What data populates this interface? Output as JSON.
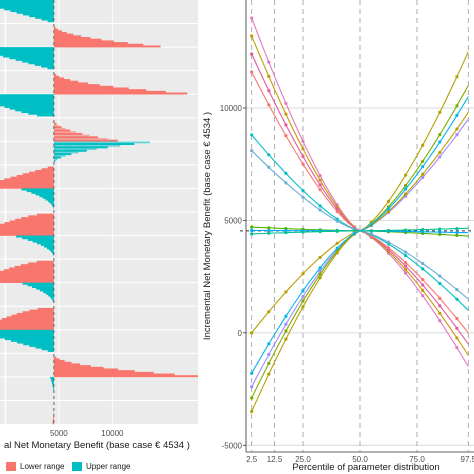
{
  "chart_data": [
    {
      "type": "bar",
      "subtype": "tornado",
      "xlabel": "al Net Monetary Benefit (base case € 4534 )",
      "base_case": 4534,
      "xlim": [
        -500,
        18000
      ],
      "xticks": [
        5000,
        10000
      ],
      "xtick_labels": [
        "5000",
        "10000"
      ],
      "grid": true,
      "legend": {
        "placement": "bottom",
        "entries": [
          {
            "name": "Lower range",
            "color": "#f8766d"
          },
          {
            "name": "Upper range",
            "color": "#00bfc4"
          }
        ]
      },
      "groups": [
        {
          "dir": "upper",
          "value": -3000,
          "shape": "linear",
          "lighter": false
        },
        {
          "dir": "lower",
          "value": 14500,
          "shape": "convex",
          "lighter": false
        },
        {
          "dir": "upper",
          "value": -3200,
          "shape": "linear",
          "lighter": false
        },
        {
          "dir": "lower",
          "value": 17000,
          "shape": "convex",
          "lighter": false
        },
        {
          "dir": "upper",
          "value": -2800,
          "shape": "concave",
          "lighter": false
        },
        {
          "dir": "lower",
          "value": 10500,
          "shape": "convex",
          "lighter": true
        },
        {
          "dir": "upper",
          "value": 13500,
          "shape": "convex",
          "lighter": true
        },
        {
          "dir": "lower",
          "value": -3000,
          "shape": "linear",
          "lighter": false
        },
        {
          "dir": "upper",
          "value": 1500,
          "shape": "convex",
          "lighter": false
        },
        {
          "dir": "lower",
          "value": -2800,
          "shape": "concave",
          "lighter": false
        },
        {
          "dir": "upper",
          "value": 1000,
          "shape": "convex",
          "lighter": false
        },
        {
          "dir": "lower",
          "value": -2900,
          "shape": "concave",
          "lighter": false
        },
        {
          "dir": "upper",
          "value": 1600,
          "shape": "convex",
          "lighter": false
        },
        {
          "dir": "lower",
          "value": -2500,
          "shape": "concave",
          "lighter": false
        },
        {
          "dir": "upper",
          "value": -2900,
          "shape": "linear",
          "lighter": false
        },
        {
          "dir": "lower",
          "value": 18000,
          "shape": "convex",
          "lighter": false
        },
        {
          "dir": "upper",
          "value": 4200,
          "shape": "convex",
          "lighter": false
        },
        {
          "dir": "lower",
          "value": 4400,
          "shape": "convex",
          "lighter": false
        }
      ]
    },
    {
      "type": "line",
      "xlabel": "Percentile of parameter distribution",
      "ylabel": "Incremental Net Monetary Benefit (base case € 4534 )",
      "base_case": 4534,
      "x_ticks": [
        2.5,
        12.5,
        25.0,
        50.0,
        75.0,
        97.5
      ],
      "x_tick_labels": [
        "2.5",
        "12.5",
        "25.0",
        "50.0",
        "75.0",
        "97.5"
      ],
      "xlim": [
        0,
        100
      ],
      "ylim": [
        -5300,
        14800
      ],
      "y_ticks": [
        -5000,
        0,
        5000,
        10000
      ],
      "grid": true,
      "x": [
        2.5,
        5,
        7.5,
        10,
        12.5,
        15,
        17.5,
        20,
        22.5,
        25,
        27.5,
        30,
        32.5,
        35,
        37.5,
        40,
        42.5,
        45,
        47.5,
        50,
        52.5,
        55,
        57.5,
        60,
        62.5,
        65,
        67.5,
        70,
        72.5,
        75,
        77.5,
        80,
        82.5,
        85,
        87.5,
        90,
        92.5,
        95,
        97.5
      ],
      "series": [
        {
          "color": "#e377c2",
          "from": 14000,
          "to": -1500
        },
        {
          "color": "#c49a00",
          "from": 13200,
          "to": -1000
        },
        {
          "color": "#e05a9f",
          "from": 12400,
          "to": -500
        },
        {
          "color": "#f8766d",
          "from": 11600,
          "to": 0
        },
        {
          "color": "#00bfc4",
          "from": 8800,
          "to": 1000
        },
        {
          "color": "#6baed6",
          "from": 8100,
          "to": 1500
        },
        {
          "color": "#53b400",
          "from": 4700,
          "to": 4300
        },
        {
          "color": "#00a9ff",
          "from": 4550,
          "to": 4450
        },
        {
          "color": "#00c094",
          "from": 4400,
          "to": 4650
        },
        {
          "color": "#a58aff",
          "from": -2400,
          "to": 9500
        },
        {
          "color": "#7cae00",
          "from": -2900,
          "to": 11000
        },
        {
          "color": "#b5a000",
          "from": -3500,
          "to": 12500
        },
        {
          "color": "#b79f00",
          "from": 0,
          "to": 9800
        },
        {
          "color": "#00b6eb",
          "from": -1800,
          "to": 10500
        }
      ]
    }
  ]
}
